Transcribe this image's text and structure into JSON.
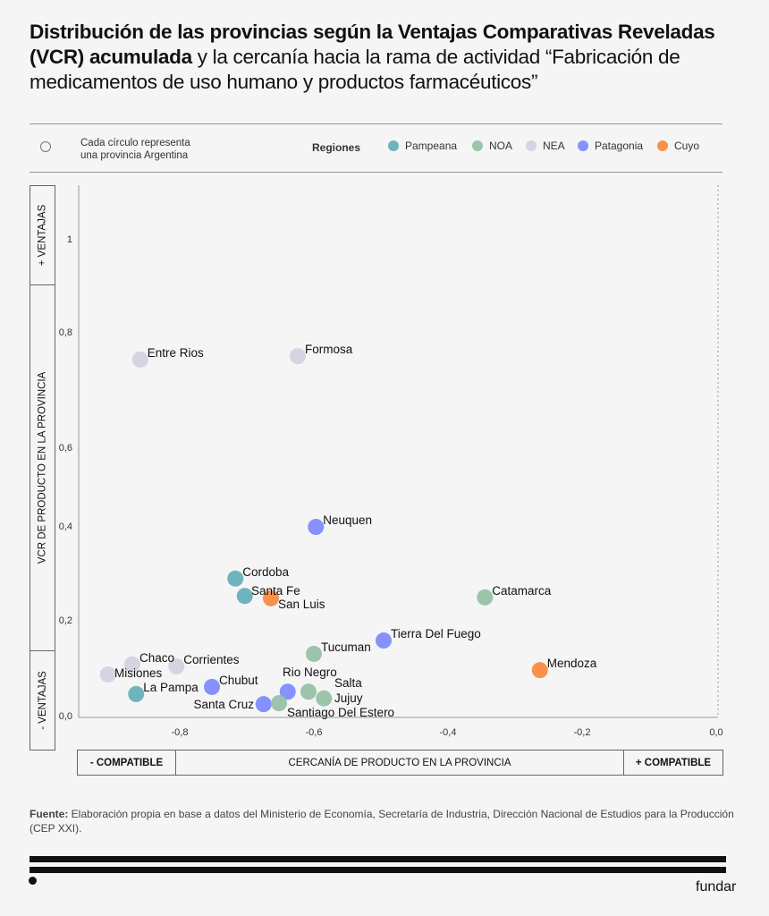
{
  "title": {
    "bold": "Distribución de las provincias según la Ventajas Comparativas Reveladas (VCR) acumulada",
    "rest": " y la cercanía hacia la rama de actividad “Fabricación de medicamentos de uso humano y productos farmacéuticos”"
  },
  "legend": {
    "note_line1": "Cada círculo representa",
    "note_line2": "una provincia Argentina",
    "regions_title": "Regiones",
    "regions": [
      {
        "name": "Pampeana",
        "color": "#6fb3be"
      },
      {
        "name": "NOA",
        "color": "#9cc4ab"
      },
      {
        "name": "NEA",
        "color": "#d4d4e2"
      },
      {
        "name": "Patagonia",
        "color": "#8592fb"
      },
      {
        "name": "Cuyo",
        "color": "#f9914b"
      }
    ]
  },
  "axes": {
    "y_top": "+ VENTAJAS",
    "y_label": "VCR DE PRODUCTO EN LA PROVINCIA",
    "y_bottom": "- VENTAJAS",
    "x_left": "- COMPATIBLE",
    "x_label": "CERCANÍA DE PRODUCTO EN LA PROVINCIA",
    "x_right": "+ COMPATIBLE"
  },
  "chart_data": {
    "type": "scatter",
    "xlabel": "CERCANÍA DE PRODUCTO EN LA PROVINCIA",
    "ylabel": "VCR DE PRODUCTO EN LA PROVINCIA",
    "xlim": [
      -0.95,
      0.0
    ],
    "ylim": [
      0.0,
      1.1
    ],
    "x_ticks": [
      "-0,8",
      "-0,6",
      "-0,4",
      "-0,2",
      "0,0"
    ],
    "x_tick_values": [
      -0.8,
      -0.6,
      -0.4,
      -0.2,
      0.0
    ],
    "y_ticks": [
      "0,0",
      "0,2",
      "0,4",
      "0,6",
      "0,8",
      "1"
    ],
    "y_tick_values": [
      0,
      0.2,
      0.4,
      0.6,
      0.8,
      1.0
    ],
    "points": [
      {
        "name": "Entre Rios",
        "region": "NEA",
        "x": -0.859,
        "y": 0.752
      },
      {
        "name": "Formosa",
        "region": "NEA",
        "x": -0.624,
        "y": 0.758
      },
      {
        "name": "Neuquen",
        "region": "Patagonia",
        "x": -0.597,
        "y": 0.398
      },
      {
        "name": "Cordoba",
        "region": "Pampeana",
        "x": -0.717,
        "y": 0.288
      },
      {
        "name": "Santa Fe",
        "region": "Pampeana",
        "x": -0.703,
        "y": 0.251
      },
      {
        "name": "San Luis",
        "region": "Cuyo",
        "x": -0.664,
        "y": 0.246
      },
      {
        "name": "Catamarca",
        "region": "NOA",
        "x": -0.345,
        "y": 0.248
      },
      {
        "name": "Tierra Del Fuego",
        "region": "Patagonia",
        "x": -0.496,
        "y": 0.157
      },
      {
        "name": "Tucuman",
        "region": "NOA",
        "x": -0.6,
        "y": 0.129
      },
      {
        "name": "Mendoza",
        "region": "Cuyo",
        "x": -0.263,
        "y": 0.095
      },
      {
        "name": "Chaco",
        "region": "NEA",
        "x": -0.871,
        "y": 0.107
      },
      {
        "name": "Corrientes",
        "region": "NEA",
        "x": -0.805,
        "y": 0.103
      },
      {
        "name": "Misiones",
        "region": "NEA",
        "x": -0.907,
        "y": 0.086
      },
      {
        "name": "La Pampa",
        "region": "Pampeana",
        "x": -0.865,
        "y": 0.045
      },
      {
        "name": "Chubut",
        "region": "Patagonia",
        "x": -0.752,
        "y": 0.06
      },
      {
        "name": "Rio Negro",
        "region": "Patagonia",
        "x": -0.639,
        "y": 0.05
      },
      {
        "name": "Salta",
        "region": "NOA",
        "x": -0.608,
        "y": 0.05
      },
      {
        "name": "Jujuy",
        "region": "NOA",
        "x": -0.585,
        "y": 0.036
      },
      {
        "name": "Santa Cruz",
        "region": "Patagonia",
        "x": -0.675,
        "y": 0.024
      },
      {
        "name": "Santiago Del Estero",
        "region": "NOA",
        "x": -0.652,
        "y": 0.026
      }
    ]
  },
  "source": {
    "label": "Fuente:",
    "text": " Elaboración propia en base a datos del Ministerio de Economía, Secretaría de Industria, Dirección Nacional de Estudios para la Producción (CEP XXI)."
  },
  "brand": "fundar"
}
